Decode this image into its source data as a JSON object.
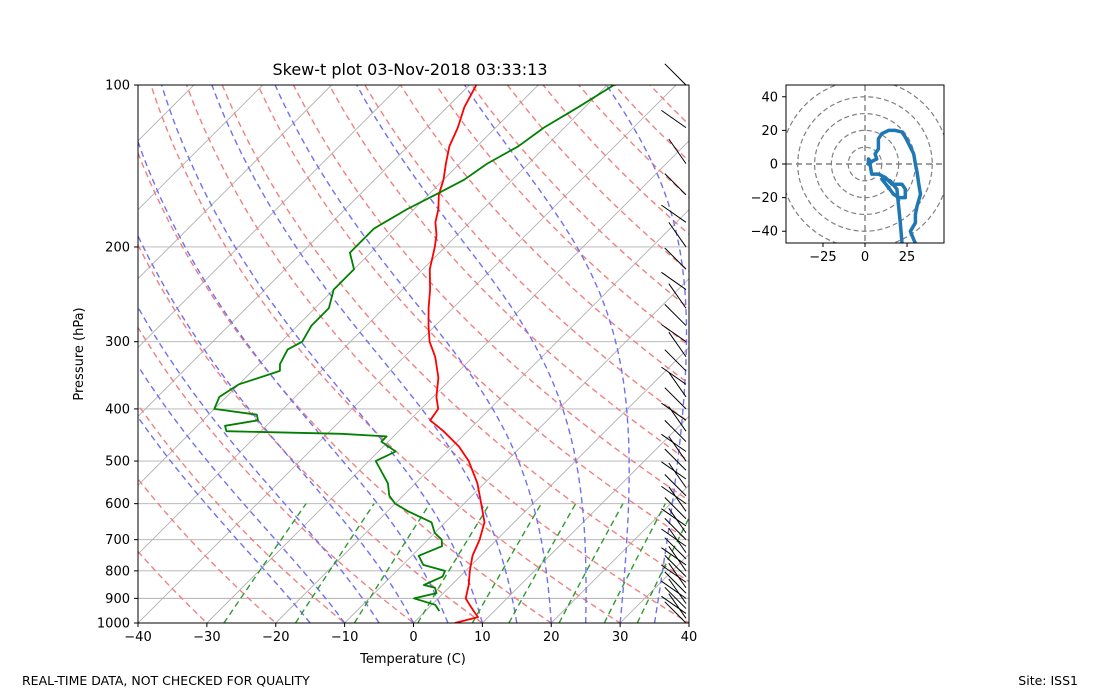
{
  "figure": {
    "footer_left": "REAL-TIME DATA, NOT CHECKED FOR QUALITY",
    "footer_right": "Site: ISS1"
  },
  "chart_data": [
    {
      "type": "skew-t",
      "title": "Skew-t plot 03-Nov-2018 03:33:13",
      "xlabel": "Temperature (C)",
      "ylabel": "Pressure (hPa)",
      "xlim": [
        -40,
        40
      ],
      "ylim": [
        1000,
        100
      ],
      "y_scale": "log",
      "x_ticks": [
        -40,
        -30,
        -20,
        -10,
        0,
        10,
        20,
        30,
        40
      ],
      "y_ticks": [
        1000,
        900,
        800,
        700,
        600,
        500,
        400,
        300,
        200,
        100
      ],
      "grid": true,
      "colors": {
        "temperature": "#ff0000",
        "dewpoint": "#008000",
        "dry_adiabats": "#f08080",
        "moist_adiabats": "#7070f0",
        "mixing_ratio": "#2e9a2e",
        "isotherms": "#b0b0b0",
        "wind_barbs": "#000000"
      },
      "series": [
        {
          "kind": "temperature",
          "points": [
            [
              1000,
              6
            ],
            [
              975,
              8.5
            ],
            [
              950,
              7
            ],
            [
              925,
              5.5
            ],
            [
              900,
              4
            ],
            [
              850,
              2.5
            ],
            [
              800,
              0.6
            ],
            [
              750,
              -1.2
            ],
            [
              700,
              -2.5
            ],
            [
              650,
              -4.3
            ],
            [
              600,
              -7.5
            ],
            [
              550,
              -11
            ],
            [
              500,
              -15.5
            ],
            [
              470,
              -19
            ],
            [
              440,
              -23.5
            ],
            [
              420,
              -27
            ],
            [
              400,
              -27.5
            ],
            [
              380,
              -29.5
            ],
            [
              350,
              -32
            ],
            [
              320,
              -35.5
            ],
            [
              300,
              -38.5
            ],
            [
              280,
              -41
            ],
            [
              260,
              -43.5
            ],
            [
              240,
              -46
            ],
            [
              220,
              -49
            ],
            [
              200,
              -51.5
            ],
            [
              190,
              -53
            ],
            [
              180,
              -55
            ],
            [
              170,
              -56.5
            ],
            [
              160,
              -58.5
            ],
            [
              150,
              -60
            ],
            [
              140,
              -62
            ],
            [
              130,
              -64
            ],
            [
              120,
              -65.5
            ],
            [
              110,
              -67.5
            ],
            [
              100,
              -69
            ]
          ]
        },
        {
          "kind": "dewpoint",
          "points": [
            [
              950,
              2
            ],
            [
              925,
              0.5
            ],
            [
              900,
              -3.5
            ],
            [
              880,
              -1
            ],
            [
              860,
              -2
            ],
            [
              850,
              -4
            ],
            [
              820,
              -2.5
            ],
            [
              800,
              -3
            ],
            [
              780,
              -7
            ],
            [
              750,
              -9
            ],
            [
              720,
              -7
            ],
            [
              700,
              -8
            ],
            [
              680,
              -10
            ],
            [
              650,
              -12
            ],
            [
              620,
              -17
            ],
            [
              600,
              -20
            ],
            [
              580,
              -22
            ],
            [
              550,
              -24
            ],
            [
              500,
              -29
            ],
            [
              480,
              -27.5
            ],
            [
              460,
              -31
            ],
            [
              450,
              -31
            ],
            [
              445,
              -38
            ],
            [
              440,
              -55
            ],
            [
              430,
              -56
            ],
            [
              420,
              -52
            ],
            [
              410,
              -53
            ],
            [
              400,
              -60
            ],
            [
              380,
              -61
            ],
            [
              360,
              -60
            ],
            [
              340,
              -56
            ],
            [
              330,
              -57
            ],
            [
              310,
              -58
            ],
            [
              300,
              -57
            ],
            [
              280,
              -58
            ],
            [
              260,
              -58
            ],
            [
              240,
              -60
            ],
            [
              220,
              -60
            ],
            [
              205,
              -63
            ],
            [
              200,
              -63
            ],
            [
              185,
              -63
            ],
            [
              170,
              -61
            ],
            [
              160,
              -59
            ],
            [
              150,
              -57
            ],
            [
              140,
              -56
            ],
            [
              130,
              -54
            ],
            [
              120,
              -53
            ],
            [
              110,
              -51
            ],
            [
              100,
              -49
            ]
          ]
        }
      ],
      "wind_barbs": "barbs plotted on right edge from 1000 to 100 hPa"
    },
    {
      "type": "hodograph",
      "xlim": [
        -47,
        47
      ],
      "ylim": [
        -47,
        47
      ],
      "x_ticks": [
        -25,
        0,
        25
      ],
      "y_ticks": [
        -40,
        -20,
        0,
        20,
        40
      ],
      "rings": [
        10,
        20,
        30,
        40,
        50
      ],
      "color": "#1f77b4",
      "points": [
        [
          22,
          -47
        ],
        [
          21,
          -35
        ],
        [
          20,
          -25
        ],
        [
          19,
          -15
        ],
        [
          15,
          -10
        ],
        [
          12,
          -9
        ],
        [
          10,
          -9
        ],
        [
          14,
          -14
        ],
        [
          17,
          -18
        ],
        [
          20,
          -20
        ],
        [
          24,
          -20
        ],
        [
          24,
          -15
        ],
        [
          22,
          -12
        ],
        [
          16,
          -12
        ],
        [
          12,
          -8
        ],
        [
          8,
          -6
        ],
        [
          4,
          -6
        ],
        [
          3,
          0
        ],
        [
          3,
          2
        ],
        [
          2,
          3
        ],
        [
          2,
          0
        ],
        [
          5,
          2
        ],
        [
          7,
          3
        ],
        [
          6,
          6
        ],
        [
          8,
          9
        ],
        [
          8,
          15
        ],
        [
          10,
          18
        ],
        [
          14,
          20
        ],
        [
          18,
          20
        ],
        [
          22,
          19
        ],
        [
          24,
          16
        ],
        [
          27,
          10
        ],
        [
          29,
          6
        ],
        [
          30,
          0
        ],
        [
          31,
          -5
        ],
        [
          32,
          -12
        ],
        [
          33,
          -18
        ],
        [
          31,
          -25
        ],
        [
          30,
          -30
        ],
        [
          30,
          -35
        ],
        [
          27,
          -40
        ],
        [
          29,
          -45
        ],
        [
          30,
          -47
        ]
      ]
    }
  ]
}
